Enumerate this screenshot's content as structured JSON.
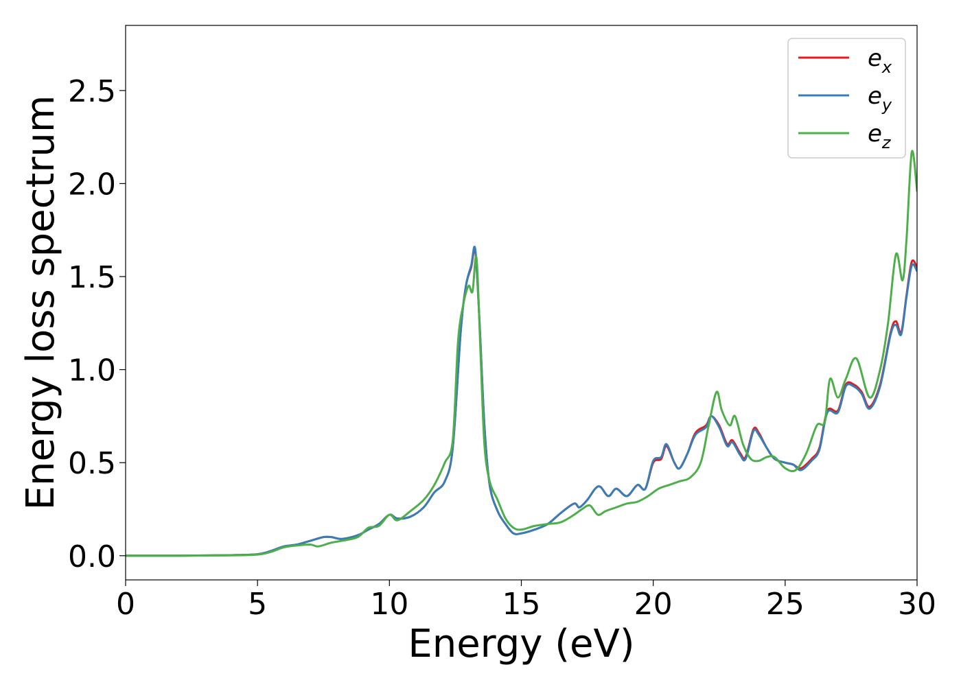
{
  "chart_data": {
    "type": "line",
    "title": "",
    "xlabel": "Energy (eV)",
    "ylabel": "Energy loss spectrum",
    "xlim": [
      0,
      30
    ],
    "ylim": [
      -0.13,
      2.85
    ],
    "xticks": [
      0,
      5,
      10,
      15,
      20,
      25,
      30
    ],
    "xtick_labels": [
      "0",
      "5",
      "10",
      "15",
      "20",
      "25",
      "30"
    ],
    "yticks": [
      0.0,
      0.5,
      1.0,
      1.5,
      2.0,
      2.5
    ],
    "ytick_labels": [
      "0.0",
      "0.5",
      "1.0",
      "1.5",
      "2.0",
      "2.5"
    ],
    "grid": false,
    "legend_position": "top-right",
    "series": [
      {
        "name": "e",
        "subscript": "x",
        "color": "#e41a1c",
        "x": [
          0,
          2,
          4,
          5,
          5.5,
          6,
          6.5,
          7,
          7.5,
          7.8,
          8.2,
          8.8,
          9.2,
          9.6,
          10,
          10.3,
          10.8,
          11.3,
          11.7,
          12.1,
          12.4,
          12.7,
          12.9,
          13.1,
          13.25,
          13.4,
          13.6,
          13.8,
          14.1,
          14.4,
          14.7,
          15,
          15.5,
          16,
          16.5,
          17,
          17.2,
          17.5,
          17.8,
          18,
          18.3,
          18.6,
          19,
          19.4,
          19.7,
          20,
          20.3,
          20.5,
          20.8,
          21,
          21.3,
          21.6,
          22,
          22.2,
          22.5,
          22.8,
          23,
          23.3,
          23.5,
          23.8,
          24,
          24.3,
          24.6,
          25,
          25.3,
          25.6,
          26,
          26.3,
          26.6,
          27,
          27.3,
          27.6,
          27.9,
          28.2,
          28.6,
          29,
          29.2,
          29.4,
          29.6,
          29.8,
          30
        ],
        "y": [
          0,
          0,
          0.003,
          0.008,
          0.025,
          0.05,
          0.06,
          0.08,
          0.1,
          0.1,
          0.09,
          0.11,
          0.14,
          0.17,
          0.22,
          0.2,
          0.21,
          0.26,
          0.34,
          0.4,
          0.58,
          1.2,
          1.45,
          1.55,
          1.64,
          1.3,
          0.7,
          0.38,
          0.24,
          0.17,
          0.12,
          0.12,
          0.14,
          0.17,
          0.23,
          0.28,
          0.26,
          0.3,
          0.36,
          0.37,
          0.32,
          0.36,
          0.32,
          0.38,
          0.36,
          0.5,
          0.52,
          0.59,
          0.5,
          0.47,
          0.55,
          0.66,
          0.7,
          0.75,
          0.7,
          0.6,
          0.62,
          0.55,
          0.53,
          0.68,
          0.66,
          0.58,
          0.52,
          0.5,
          0.49,
          0.47,
          0.52,
          0.58,
          0.78,
          0.78,
          0.92,
          0.92,
          0.88,
          0.8,
          0.92,
          1.2,
          1.26,
          1.2,
          1.4,
          1.58,
          1.55
        ]
      },
      {
        "name": "e",
        "subscript": "y",
        "color": "#377eb8",
        "x": [
          0,
          2,
          4,
          5,
          5.5,
          6,
          6.5,
          7,
          7.5,
          7.8,
          8.2,
          8.8,
          9.2,
          9.6,
          10,
          10.3,
          10.8,
          11.3,
          11.7,
          12.1,
          12.4,
          12.7,
          12.9,
          13.1,
          13.25,
          13.4,
          13.6,
          13.8,
          14.1,
          14.4,
          14.7,
          15,
          15.5,
          16,
          16.5,
          17,
          17.2,
          17.5,
          17.8,
          18,
          18.3,
          18.6,
          19,
          19.4,
          19.7,
          20,
          20.3,
          20.5,
          20.8,
          21,
          21.3,
          21.6,
          22,
          22.2,
          22.5,
          22.8,
          23,
          23.3,
          23.5,
          23.8,
          24,
          24.3,
          24.6,
          25,
          25.3,
          25.6,
          26,
          26.3,
          26.6,
          27,
          27.3,
          27.6,
          27.9,
          28.2,
          28.6,
          29,
          29.2,
          29.4,
          29.6,
          29.8,
          30
        ],
        "y": [
          0,
          0,
          0.003,
          0.008,
          0.025,
          0.05,
          0.06,
          0.08,
          0.1,
          0.1,
          0.09,
          0.11,
          0.14,
          0.17,
          0.22,
          0.2,
          0.21,
          0.26,
          0.34,
          0.4,
          0.58,
          1.2,
          1.45,
          1.56,
          1.65,
          1.3,
          0.7,
          0.38,
          0.24,
          0.17,
          0.12,
          0.12,
          0.14,
          0.17,
          0.23,
          0.28,
          0.26,
          0.3,
          0.36,
          0.37,
          0.32,
          0.36,
          0.32,
          0.38,
          0.36,
          0.51,
          0.53,
          0.6,
          0.5,
          0.47,
          0.55,
          0.65,
          0.69,
          0.75,
          0.69,
          0.59,
          0.61,
          0.54,
          0.52,
          0.67,
          0.65,
          0.58,
          0.52,
          0.5,
          0.49,
          0.46,
          0.51,
          0.57,
          0.77,
          0.77,
          0.91,
          0.91,
          0.87,
          0.79,
          0.91,
          1.19,
          1.24,
          1.19,
          1.39,
          1.56,
          1.53
        ]
      },
      {
        "name": "e",
        "subscript": "z",
        "color": "#4daf4a",
        "x": [
          0,
          2,
          4,
          5,
          5.5,
          6,
          6.5,
          7,
          7.3,
          7.8,
          8.2,
          8.8,
          9.2,
          9.6,
          10,
          10.3,
          10.8,
          11.3,
          11.7,
          12.1,
          12.4,
          12.6,
          12.8,
          13.0,
          13.15,
          13.3,
          13.45,
          13.6,
          13.8,
          14.1,
          14.4,
          14.7,
          15,
          15.5,
          16,
          16.5,
          17,
          17.3,
          17.6,
          17.9,
          18.2,
          18.6,
          19,
          19.4,
          19.8,
          20.2,
          20.6,
          21,
          21.4,
          21.8,
          22.1,
          22.4,
          22.6,
          22.9,
          23.1,
          23.4,
          23.7,
          24,
          24.3,
          24.6,
          25,
          25.4,
          25.8,
          26.2,
          26.5,
          26.7,
          27,
          27.3,
          27.7,
          28.2,
          28.6,
          28.9,
          29.2,
          29.45,
          29.6,
          29.8,
          30
        ],
        "y": [
          0,
          0,
          0.002,
          0.006,
          0.02,
          0.045,
          0.055,
          0.06,
          0.05,
          0.07,
          0.08,
          0.1,
          0.15,
          0.16,
          0.22,
          0.19,
          0.24,
          0.3,
          0.38,
          0.5,
          0.62,
          1.15,
          1.35,
          1.45,
          1.42,
          1.6,
          1.1,
          0.6,
          0.4,
          0.3,
          0.2,
          0.15,
          0.14,
          0.16,
          0.17,
          0.18,
          0.22,
          0.25,
          0.27,
          0.22,
          0.24,
          0.26,
          0.28,
          0.29,
          0.32,
          0.36,
          0.38,
          0.4,
          0.42,
          0.5,
          0.7,
          0.88,
          0.78,
          0.7,
          0.75,
          0.6,
          0.52,
          0.51,
          0.53,
          0.53,
          0.47,
          0.46,
          0.55,
          0.7,
          0.72,
          0.95,
          0.85,
          0.95,
          1.06,
          0.85,
          1.0,
          1.25,
          1.62,
          1.48,
          1.7,
          2.17,
          1.96
        ]
      }
    ]
  }
}
